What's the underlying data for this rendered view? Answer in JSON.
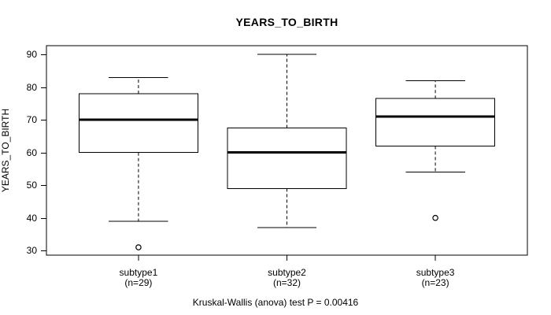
{
  "chart_data": {
    "type": "boxplot",
    "title": "YEARS_TO_BIRTH",
    "ylabel": "YEARS_TO_BIRTH",
    "xlabel": "",
    "caption": "Kruskal-Wallis (anova) test P = 0.00416",
    "p_value": "0.00416",
    "yticks": [
      30,
      40,
      50,
      60,
      70,
      80,
      90
    ],
    "ylim": [
      28.6,
      92.7
    ],
    "xlim": [
      0.38,
      3.62
    ],
    "positions": [
      1,
      2,
      3
    ],
    "box_halfwidth": 0.4,
    "cap_halfwidth": 0.2,
    "grid": false,
    "legend": "none",
    "groups": [
      {
        "label": "subtype1",
        "n_label": "(n=29)",
        "n": 29,
        "whisker_low": 39,
        "q1": 60,
        "median": 70,
        "q3": 78,
        "whisker_high": 83,
        "outliers": [
          31
        ]
      },
      {
        "label": "subtype2",
        "n_label": "(n=32)",
        "n": 32,
        "whisker_low": 37,
        "q1": 49,
        "median": 60,
        "q3": 67.5,
        "whisker_high": 90,
        "outliers": []
      },
      {
        "label": "subtype3",
        "n_label": "(n=23)",
        "n": 23,
        "whisker_low": 54,
        "q1": 62,
        "median": 71,
        "q3": 76.5,
        "whisker_high": 82,
        "outliers": [
          40
        ]
      }
    ],
    "colors": {
      "line": "#000000",
      "box_fill": "#ffffff",
      "background": "#ffffff"
    }
  }
}
